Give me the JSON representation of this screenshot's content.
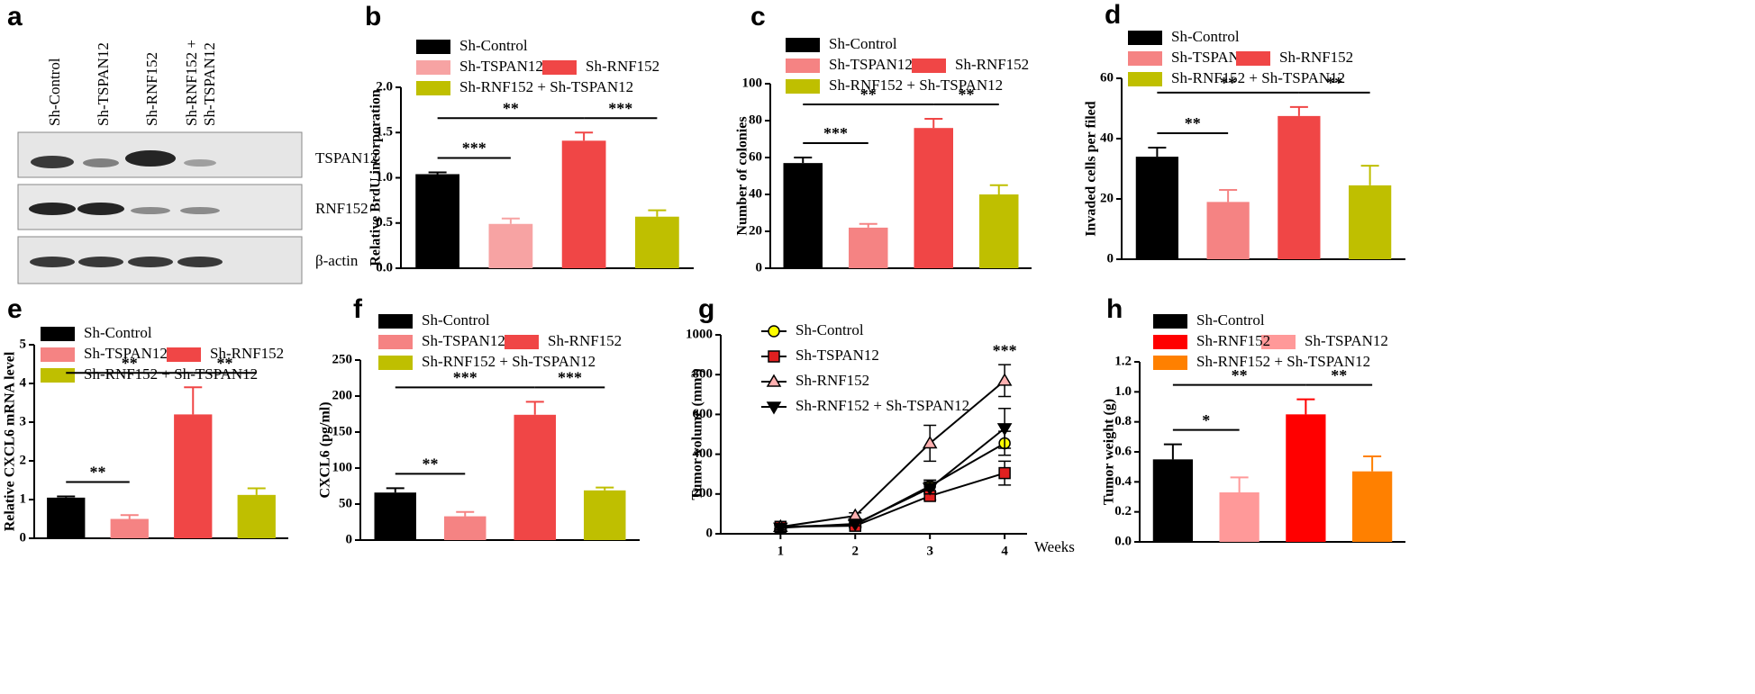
{
  "blot": {
    "panel": "a",
    "lanes": [
      "Sh-Control",
      "Sh-TSPAN12",
      "Sh-RNF152",
      [
        "Sh-RNF152 +",
        "Sh-TSPAN12"
      ]
    ],
    "bands": [
      "TSPAN12",
      "RNF152",
      "β-actin"
    ]
  },
  "chart_data": [
    {
      "type": "bar",
      "panel": "b",
      "y_label": "Relative BrdU incorporation",
      "ylim": [
        0,
        2.0
      ],
      "yticks": [
        {
          "value": 0,
          "label": "0.0"
        },
        0.5,
        {
          "value": 1,
          "label": "1.0"
        },
        1.5,
        {
          "value": 2,
          "label": "2.0"
        }
      ],
      "series": [
        {
          "name": "Sh-Control",
          "color": "#000000",
          "values": [
            1.04
          ],
          "errors": [
            0.02
          ]
        },
        {
          "name": "Sh-TSPAN12",
          "color": "#f7a3a3",
          "values": [
            0.49
          ],
          "errors": [
            0.06
          ]
        },
        {
          "name": "Sh-RNF152",
          "color": "#f04646",
          "values": [
            1.41
          ],
          "errors": [
            0.09
          ]
        },
        {
          "name": "Sh-RNF152 + Sh-TSPAN12",
          "color": "#bfbf00",
          "values": [
            0.57
          ],
          "errors": [
            0.07
          ]
        }
      ],
      "annotations": [
        {
          "text": "***",
          "between": [
            0,
            1
          ]
        },
        {
          "text": "**",
          "between": [
            0,
            2
          ]
        },
        {
          "text": "***",
          "between": [
            2,
            3
          ]
        }
      ]
    },
    {
      "type": "bar",
      "panel": "c",
      "y_label": "Number of colonies",
      "ylim": [
        0,
        100
      ],
      "yticks": [
        0,
        20,
        40,
        60,
        80,
        100
      ],
      "series": [
        {
          "name": "Sh-Control",
          "color": "#000000",
          "values": [
            57
          ],
          "errors": [
            3
          ]
        },
        {
          "name": "Sh-TSPAN12",
          "color": "#f58383",
          "values": [
            22
          ],
          "errors": [
            2
          ]
        },
        {
          "name": "Sh-RNF152",
          "color": "#f04646",
          "values": [
            76
          ],
          "errors": [
            5
          ]
        },
        {
          "name": "Sh-RNF152 + Sh-TSPAN12",
          "color": "#bfbf00",
          "values": [
            40
          ],
          "errors": [
            5
          ]
        }
      ],
      "annotations": [
        {
          "text": "***",
          "between": [
            0,
            1
          ]
        },
        {
          "text": "**",
          "between": [
            0,
            2
          ]
        },
        {
          "text": "**",
          "between": [
            2,
            3
          ]
        }
      ]
    },
    {
      "type": "bar",
      "panel": "d",
      "y_label": "Invaded cells per filed",
      "ylim": [
        0,
        60
      ],
      "yticks": [
        0,
        20,
        40,
        60
      ],
      "series": [
        {
          "name": "Sh-Control",
          "color": "#000000",
          "values": [
            34
          ],
          "errors": [
            3
          ]
        },
        {
          "name": "Sh-TSPAN12",
          "color": "#f58383",
          "values": [
            19
          ],
          "errors": [
            4
          ]
        },
        {
          "name": "Sh-RNF152",
          "color": "#f04646",
          "values": [
            47.5
          ],
          "errors": [
            3
          ]
        },
        {
          "name": "Sh-RNF152 + Sh-TSPAN12",
          "color": "#bfbf00",
          "values": [
            24.5
          ],
          "errors": [
            6.5
          ]
        }
      ],
      "annotations": [
        {
          "text": "**",
          "between": [
            0,
            1
          ]
        },
        {
          "text": "**",
          "between": [
            0,
            2
          ]
        },
        {
          "text": "**",
          "between": [
            2,
            3
          ]
        }
      ]
    },
    {
      "type": "bar",
      "panel": "e",
      "y_label": "Relative CXCL6 mRNA level",
      "ylim": [
        0,
        5
      ],
      "yticks": [
        0,
        1,
        2,
        3,
        4,
        5
      ],
      "series": [
        {
          "name": "Sh-Control",
          "color": "#000000",
          "values": [
            1.05
          ],
          "errors": [
            0.03
          ]
        },
        {
          "name": "Sh-TSPAN12",
          "color": "#f58383",
          "values": [
            0.5
          ],
          "errors": [
            0.1
          ]
        },
        {
          "name": "Sh-RNF152",
          "color": "#f04646",
          "values": [
            3.2
          ],
          "errors": [
            0.7
          ]
        },
        {
          "name": "Sh-RNF152 + Sh-TSPAN12",
          "color": "#bfbf00",
          "values": [
            1.12
          ],
          "errors": [
            0.17
          ]
        }
      ],
      "annotations": [
        {
          "text": "**",
          "between": [
            0,
            1
          ]
        },
        {
          "text": "**",
          "between": [
            0,
            2
          ]
        },
        {
          "text": "**",
          "between": [
            2,
            3
          ]
        }
      ]
    },
    {
      "type": "bar",
      "panel": "f",
      "y_label": "CXCL6 (pg/ml)",
      "ylim": [
        0,
        250
      ],
      "yticks": [
        0,
        50,
        100,
        150,
        200,
        250
      ],
      "series": [
        {
          "name": "Sh-Control",
          "color": "#000000",
          "values": [
            66
          ],
          "errors": [
            6
          ]
        },
        {
          "name": "Sh-TSPAN12",
          "color": "#f58383",
          "values": [
            33
          ],
          "errors": [
            6
          ]
        },
        {
          "name": "Sh-RNF152",
          "color": "#f04646",
          "values": [
            174
          ],
          "errors": [
            18
          ]
        },
        {
          "name": "Sh-RNF152 + Sh-TSPAN12",
          "color": "#bfbf00",
          "values": [
            69
          ],
          "errors": [
            4
          ]
        }
      ],
      "annotations": [
        {
          "text": "**",
          "between": [
            0,
            1
          ]
        },
        {
          "text": "***",
          "between": [
            0,
            2
          ]
        },
        {
          "text": "***",
          "between": [
            2,
            3
          ]
        }
      ]
    },
    {
      "type": "line",
      "panel": "g",
      "y_label": "Tumor volume (mm³)",
      "x_label": "Weeks",
      "x": [
        1,
        2,
        3,
        4
      ],
      "xlim": [
        0.2,
        4.3
      ],
      "xticks": [
        1,
        2,
        3,
        4
      ],
      "ylim": [
        0,
        1000
      ],
      "yticks": [
        0,
        200,
        400,
        600,
        800,
        1000
      ],
      "series": [
        {
          "name": "Sh-Control",
          "color": "#ffff00",
          "marker": "circle",
          "values": [
            35,
            45,
            240,
            455
          ],
          "errors": [
            10,
            10,
            30,
            60
          ]
        },
        {
          "name": "Sh-TSPAN12",
          "color": "#e02020",
          "marker": "square",
          "values": [
            35,
            40,
            190,
            305
          ],
          "errors": [
            10,
            10,
            20,
            60
          ]
        },
        {
          "name": "Sh-RNF152",
          "color": "#ffb0b0",
          "marker": "triangle",
          "values": [
            35,
            90,
            455,
            770
          ],
          "errors": [
            10,
            15,
            90,
            80
          ]
        },
        {
          "name": "Sh-RNF152 + Sh-TSPAN12",
          "color": "#000000",
          "marker": "triangle-down",
          "values": [
            30,
            50,
            230,
            530
          ],
          "errors": [
            10,
            10,
            30,
            100
          ]
        }
      ],
      "annotations": [
        {
          "text": "***",
          "x": 4
        }
      ]
    },
    {
      "type": "bar",
      "panel": "h",
      "y_label": "Tumor weight (g)",
      "ylim": [
        0,
        1.2
      ],
      "yticks": [
        {
          "value": 0,
          "label": "0.0"
        },
        0.2,
        0.4,
        0.6,
        0.8,
        {
          "value": 1,
          "label": "1.0"
        },
        1.2
      ],
      "series": [
        {
          "name": "Sh-Control",
          "color": "#000000",
          "values": [
            0.55
          ],
          "errors": [
            0.1
          ]
        },
        {
          "name": "Sh-TSPAN12",
          "color": "#ff9999",
          "values": [
            0.33
          ],
          "errors": [
            0.1
          ]
        },
        {
          "name": "Sh-RNF152",
          "color": "#ff0000",
          "values": [
            0.85
          ],
          "errors": [
            0.1
          ]
        },
        {
          "name": "Sh-RNF152 + Sh-TSPAN12",
          "color": "#ff8000",
          "values": [
            0.47
          ],
          "errors": [
            0.1
          ]
        }
      ],
      "annotations": [
        {
          "text": "*",
          "between": [
            0,
            1
          ]
        },
        {
          "text": "**",
          "between": [
            0,
            2
          ]
        },
        {
          "text": "**",
          "between": [
            2,
            3
          ]
        }
      ]
    }
  ]
}
